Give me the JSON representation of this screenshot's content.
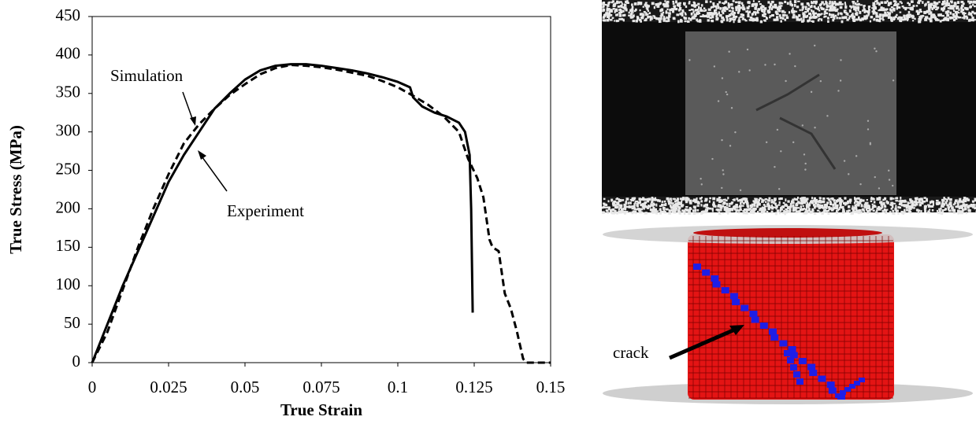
{
  "chart_data": {
    "type": "line",
    "xlabel": "True Strain",
    "ylabel": "True Stress (MPa)",
    "xlim": [
      0,
      0.15
    ],
    "ylim": [
      0,
      450
    ],
    "xticks": [
      0,
      0.025,
      0.05,
      0.075,
      0.1,
      0.125,
      0.15
    ],
    "yticks": [
      0,
      50,
      100,
      150,
      200,
      250,
      300,
      350,
      400,
      450
    ],
    "grid": false,
    "annotations": [
      "Simulation",
      "Experiment"
    ],
    "series": [
      {
        "name": "Experiment",
        "color": "#000000",
        "linestyle": "solid",
        "x": [
          0,
          0.005,
          0.01,
          0.015,
          0.02,
          0.025,
          0.03,
          0.035,
          0.04,
          0.045,
          0.05,
          0.055,
          0.06,
          0.065,
          0.07,
          0.075,
          0.08,
          0.085,
          0.09,
          0.095,
          0.1,
          0.104,
          0.105,
          0.108,
          0.112,
          0.116,
          0.12,
          0.122,
          0.1235,
          0.124,
          0.1245
        ],
        "values": [
          0,
          50,
          100,
          145,
          190,
          235,
          270,
          300,
          330,
          350,
          368,
          380,
          386,
          388,
          388,
          386,
          383,
          380,
          376,
          371,
          365,
          358,
          345,
          333,
          325,
          320,
          312,
          300,
          270,
          200,
          65
        ]
      },
      {
        "name": "Simulation",
        "color": "#000000",
        "linestyle": "dashed",
        "x": [
          0,
          0.005,
          0.01,
          0.015,
          0.02,
          0.025,
          0.03,
          0.035,
          0.04,
          0.045,
          0.05,
          0.055,
          0.06,
          0.065,
          0.07,
          0.075,
          0.08,
          0.085,
          0.09,
          0.095,
          0.1,
          0.105,
          0.11,
          0.115,
          0.12,
          0.123,
          0.126,
          0.128,
          0.13,
          0.131,
          0.133,
          0.135,
          0.137,
          0.139,
          0.141,
          0.142,
          0.15
        ],
        "values": [
          0,
          40,
          95,
          150,
          200,
          245,
          285,
          310,
          330,
          348,
          362,
          375,
          383,
          387,
          386,
          384,
          381,
          377,
          373,
          366,
          358,
          347,
          335,
          320,
          300,
          265,
          240,
          215,
          160,
          150,
          145,
          90,
          70,
          40,
          5,
          0,
          0
        ]
      }
    ]
  },
  "figure": {
    "crack_label": "crack"
  }
}
